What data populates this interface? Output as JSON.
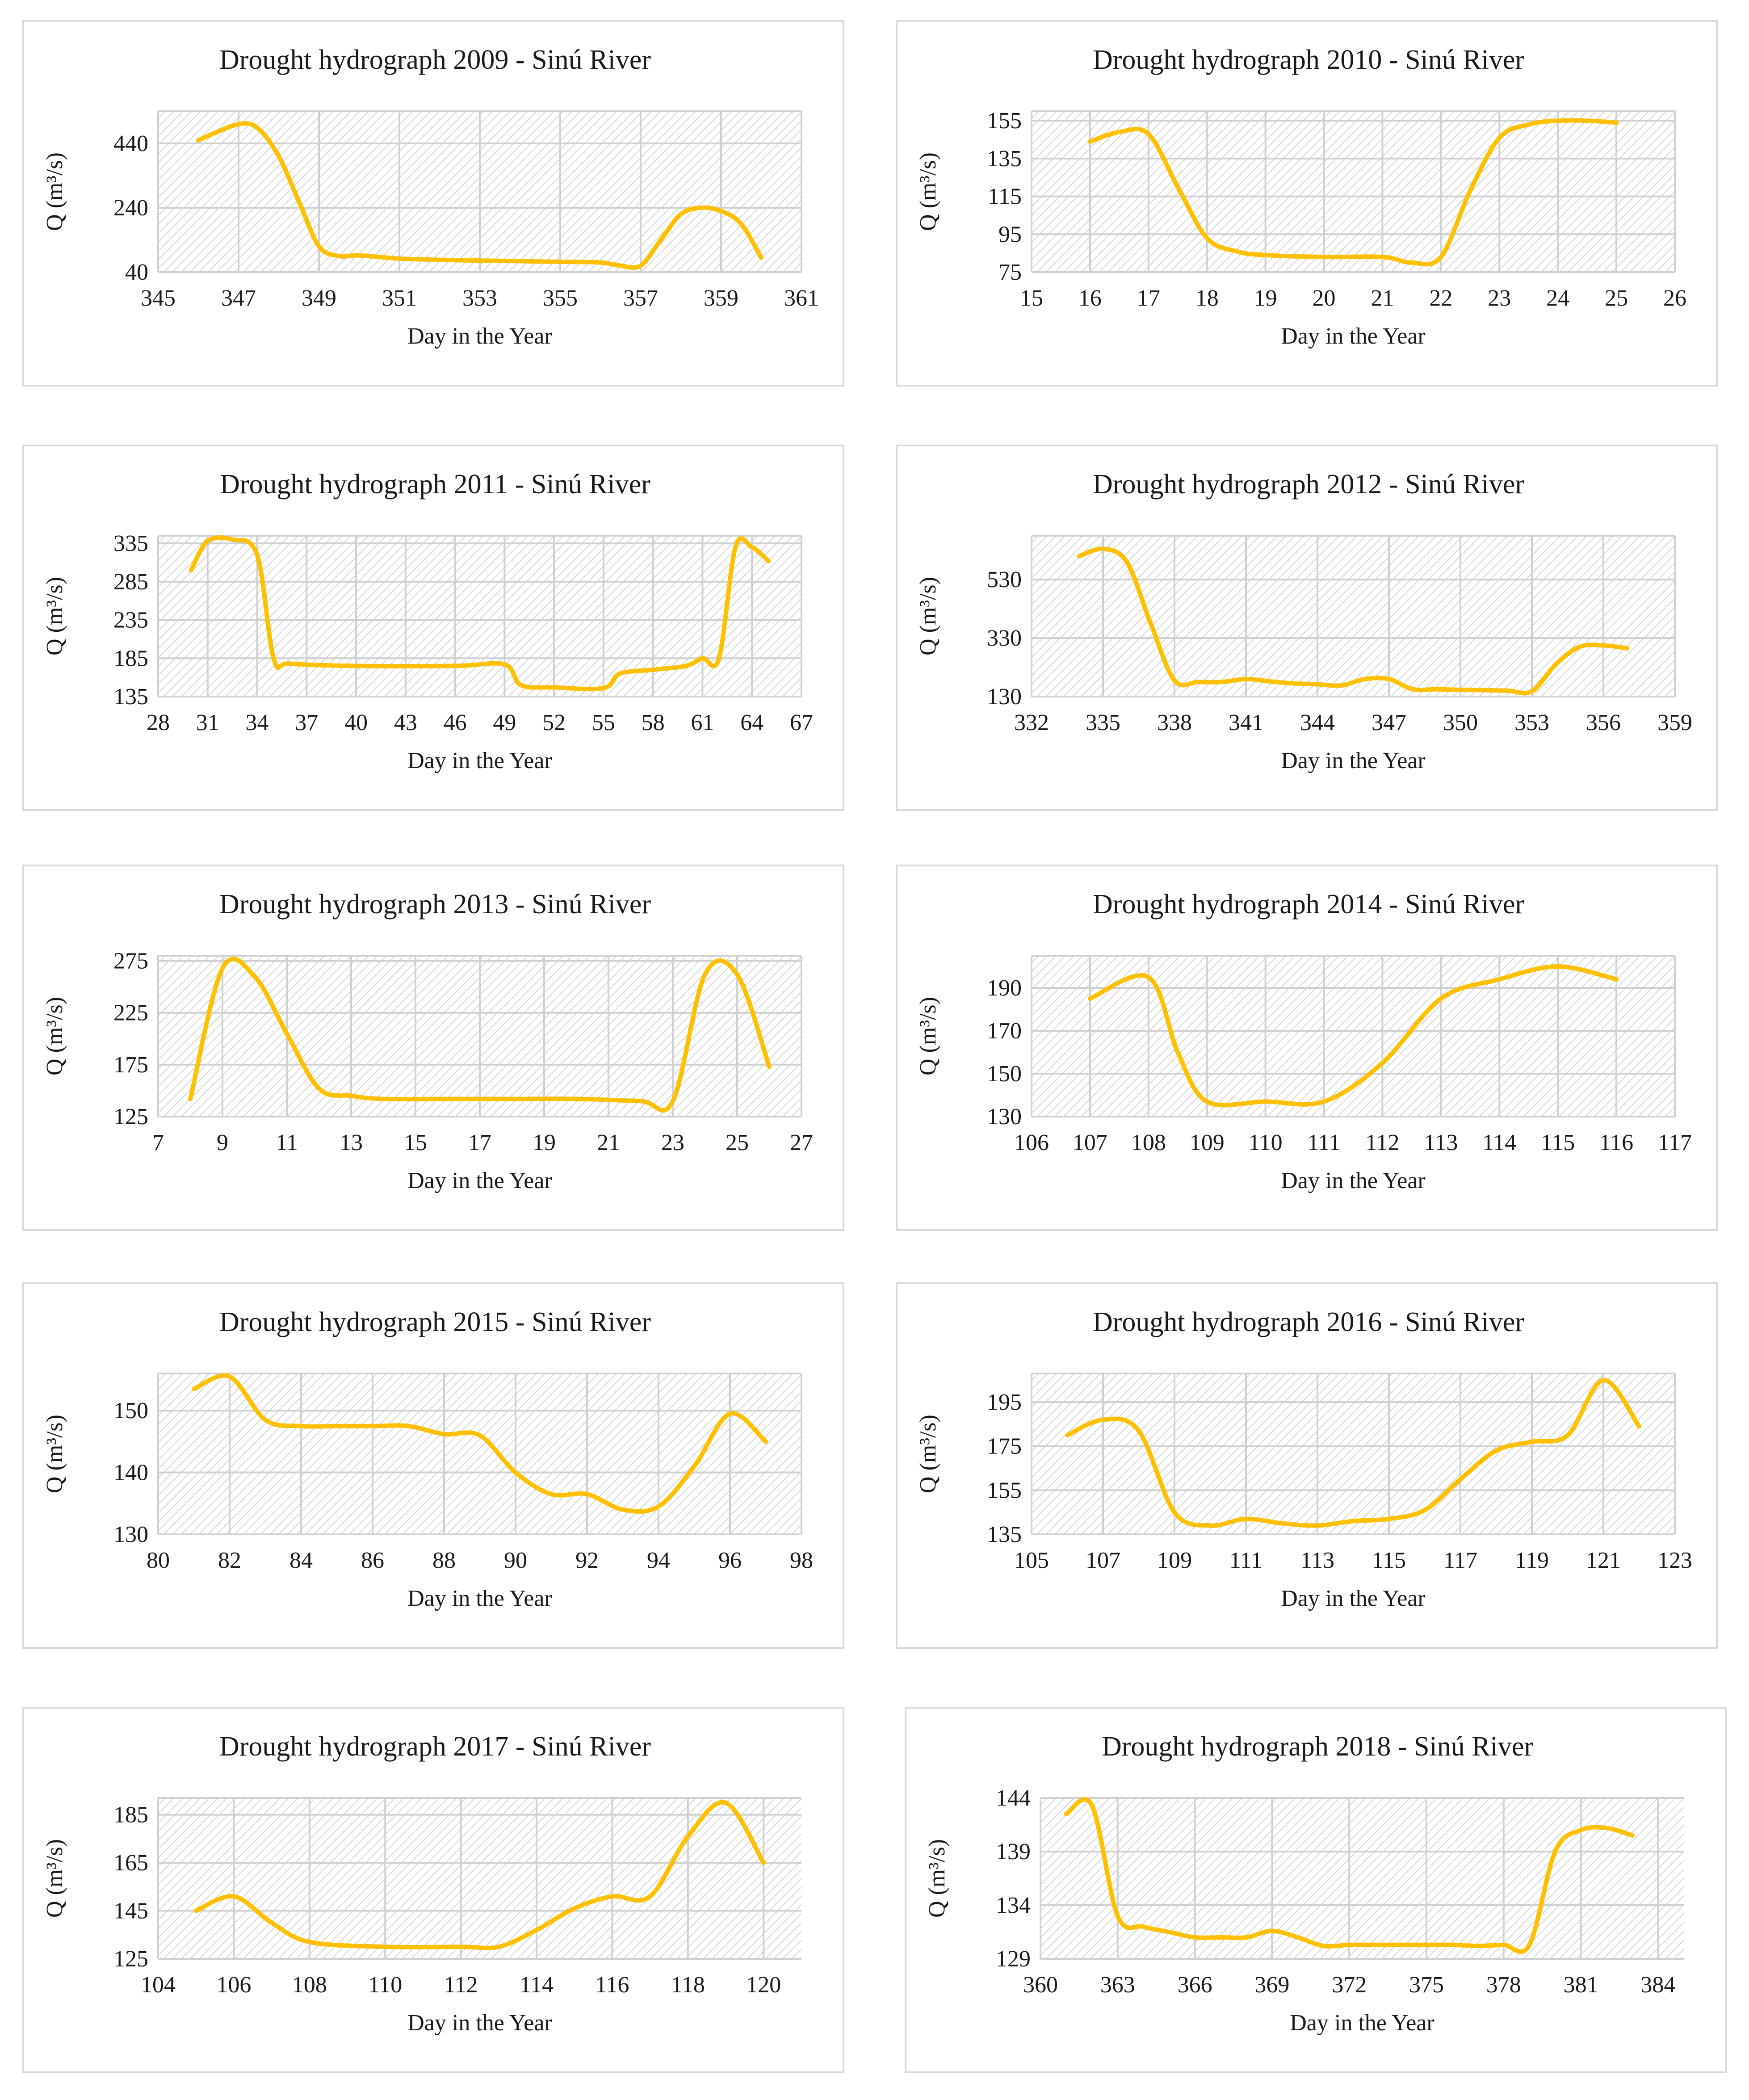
{
  "colors": {
    "series": "#FFC000",
    "grid": "#d0d0d0",
    "hatch": "#c8c8c8"
  },
  "chart_data": [
    {
      "type": "line",
      "title": "Drought hydrograph 2009 - Sinú River",
      "xlabel": "Day in the Year",
      "ylabel": "Q (m³/s)",
      "xlim": [
        345,
        361
      ],
      "ylim": [
        40,
        540
      ],
      "xticks": [
        345,
        347,
        349,
        351,
        353,
        355,
        357,
        359,
        361
      ],
      "yticks": [
        40,
        240,
        440
      ],
      "x": [
        346,
        347,
        347.5,
        348,
        348.5,
        349,
        349.5,
        350,
        351,
        352,
        353,
        354,
        355,
        356,
        356.5,
        357,
        357.5,
        358,
        358.5,
        359,
        359.5,
        360
      ],
      "values": [
        450,
        500,
        485,
        400,
        260,
        120,
        90,
        92,
        82,
        78,
        76,
        74,
        72,
        70,
        60,
        60,
        140,
        220,
        240,
        230,
        190,
        85
      ]
    },
    {
      "type": "line",
      "title": "Drought hydrograph 2010 - Sinú River",
      "xlabel": "Day in the Year",
      "ylabel": "Q (m³/s)",
      "xlim": [
        15,
        26
      ],
      "ylim": [
        75,
        160
      ],
      "xticks": [
        15,
        16,
        17,
        18,
        19,
        20,
        21,
        22,
        23,
        24,
        25,
        26
      ],
      "yticks": [
        75,
        95,
        115,
        135,
        155
      ],
      "x": [
        16,
        16.5,
        17,
        17.5,
        18,
        18.5,
        19,
        20,
        21,
        21.5,
        22,
        22.5,
        23,
        23.5,
        24,
        24.5,
        25
      ],
      "values": [
        144,
        149,
        148,
        120,
        93,
        86,
        84,
        83,
        83,
        80,
        83,
        118,
        146,
        153,
        155,
        155,
        154
      ]
    },
    {
      "type": "line",
      "title": "Drought hydrograph 2011 - Sinú River",
      "xlabel": "Day in the Year",
      "ylabel": "Q (m³/s)",
      "xlim": [
        28,
        67
      ],
      "ylim": [
        135,
        345
      ],
      "xticks": [
        28,
        31,
        34,
        37,
        40,
        43,
        46,
        49,
        52,
        55,
        58,
        61,
        64,
        67
      ],
      "yticks": [
        135,
        185,
        235,
        285,
        335
      ],
      "x": [
        30,
        31,
        32.5,
        34,
        35,
        36,
        40,
        46,
        49,
        50,
        52,
        55,
        56,
        58,
        60,
        61,
        62,
        63,
        64,
        65
      ],
      "values": [
        300,
        338,
        340,
        320,
        185,
        178,
        175,
        175,
        177,
        150,
        147,
        146,
        165,
        170,
        175,
        185,
        185,
        330,
        330,
        312
      ]
    },
    {
      "type": "line",
      "title": "Drought hydrograph 2012 - Sinú River",
      "xlabel": "Day in the Year",
      "ylabel": "Q (m³/s)",
      "xlim": [
        332,
        359
      ],
      "ylim": [
        130,
        680
      ],
      "xticks": [
        332,
        335,
        338,
        341,
        344,
        347,
        350,
        353,
        356,
        359
      ],
      "yticks": [
        130,
        330,
        530
      ],
      "x": [
        334,
        335,
        336,
        337,
        338,
        339,
        340,
        341,
        342,
        343,
        344,
        345,
        346,
        347,
        348,
        349,
        350,
        351,
        352,
        353,
        354,
        355,
        356,
        357
      ],
      "values": [
        610,
        635,
        590,
        380,
        185,
        180,
        180,
        190,
        182,
        175,
        172,
        168,
        190,
        190,
        155,
        155,
        153,
        152,
        150,
        148,
        240,
        300,
        305,
        295
      ]
    },
    {
      "type": "line",
      "title": "Drought hydrograph 2013 - Sinú River",
      "xlabel": "Day in the Year",
      "ylabel": "Q (m³/s)",
      "xlim": [
        7,
        27
      ],
      "ylim": [
        125,
        280
      ],
      "xticks": [
        7,
        9,
        11,
        13,
        15,
        17,
        19,
        21,
        23,
        25,
        27
      ],
      "yticks": [
        125,
        175,
        225,
        275
      ],
      "x": [
        8,
        9,
        10,
        11,
        12,
        13,
        14,
        16,
        18,
        20,
        22,
        23,
        24,
        25,
        26
      ],
      "values": [
        142,
        268,
        260,
        205,
        152,
        145,
        142,
        142,
        142,
        142,
        140,
        140,
        262,
        262,
        173
      ]
    },
    {
      "type": "line",
      "title": "Drought hydrograph 2014 - Sinú River",
      "xlabel": "Day in the Year",
      "ylabel": "Q (m³/s)",
      "xlim": [
        106,
        117
      ],
      "ylim": [
        130,
        205
      ],
      "xticks": [
        106,
        107,
        108,
        109,
        110,
        111,
        112,
        113,
        114,
        115,
        116,
        117
      ],
      "yticks": [
        130,
        150,
        170,
        190
      ],
      "x": [
        107,
        108,
        108.5,
        109,
        110,
        111,
        112,
        113,
        114,
        115,
        116
      ],
      "values": [
        185,
        195,
        160,
        137,
        137,
        137,
        155,
        185,
        194,
        200,
        194
      ]
    },
    {
      "type": "line",
      "title": "Drought hydrograph 2015 - Sinú River",
      "xlabel": "Day in the Year",
      "ylabel": "Q (m³/s)",
      "xlim": [
        80,
        98
      ],
      "ylim": [
        130,
        156
      ],
      "xticks": [
        80,
        82,
        84,
        86,
        88,
        90,
        92,
        94,
        96,
        98
      ],
      "yticks": [
        130,
        140,
        150
      ],
      "x": [
        81,
        82,
        83,
        84,
        85,
        86,
        87,
        88,
        89,
        90,
        91,
        92,
        93,
        94,
        95,
        96,
        97
      ],
      "values": [
        153.5,
        155.5,
        148.5,
        147.5,
        147.5,
        147.5,
        147.5,
        146.2,
        146,
        140,
        136.5,
        136.5,
        134,
        134.5,
        141,
        149.5,
        145
      ]
    },
    {
      "type": "line",
      "title": "Drought hydrograph 2016 - Sinú River",
      "xlabel": "Day in the Year",
      "ylabel": "Q (m³/s)",
      "xlim": [
        105,
        123
      ],
      "ylim": [
        135,
        208
      ],
      "xticks": [
        105,
        107,
        109,
        111,
        113,
        115,
        117,
        119,
        121,
        123
      ],
      "yticks": [
        135,
        155,
        175,
        195
      ],
      "x": [
        106,
        107,
        108,
        109,
        110,
        111,
        112,
        113,
        114,
        115,
        116,
        117,
        118,
        119,
        120,
        121,
        122
      ],
      "values": [
        180,
        187,
        182,
        145,
        139,
        142,
        140,
        139,
        141,
        142,
        146,
        160,
        173,
        177,
        180,
        205,
        184
      ]
    },
    {
      "type": "line",
      "title": "Drought hydrograph 2017 - Sinú River",
      "xlabel": "Day in the Year",
      "ylabel": "Q (m³/s)",
      "xlim": [
        104,
        121
      ],
      "ylim": [
        125,
        192
      ],
      "xticks": [
        104,
        106,
        108,
        110,
        112,
        114,
        116,
        118,
        120
      ],
      "yticks": [
        125,
        145,
        165,
        185
      ],
      "x": [
        105,
        106,
        107,
        108,
        110,
        112,
        113,
        114,
        115,
        116,
        117,
        118,
        119,
        120
      ],
      "values": [
        145,
        151,
        140,
        132,
        130,
        130,
        130,
        137,
        146,
        151,
        151,
        176,
        190,
        165
      ]
    },
    {
      "type": "line",
      "title": "Drought hydrograph 2018 - Sinú River",
      "xlabel": "Day in the Year",
      "ylabel": "Q (m³/s)",
      "xlim": [
        360,
        385
      ],
      "ylim": [
        129,
        144
      ],
      "xticks": [
        360,
        363,
        366,
        369,
        372,
        375,
        378,
        381,
        384
      ],
      "yticks": [
        129,
        134,
        139,
        144
      ],
      "x": [
        361,
        362,
        363,
        364,
        365,
        366,
        367,
        368,
        369,
        370,
        371,
        372,
        373,
        374,
        375,
        376,
        377,
        378,
        379,
        380,
        381,
        382,
        383
      ],
      "values": [
        142.5,
        143.3,
        133,
        132,
        131.5,
        131,
        131,
        131,
        131.6,
        131,
        130.2,
        130.3,
        130.3,
        130.3,
        130.3,
        130.3,
        130.2,
        130.3,
        130.3,
        139,
        141,
        141.2,
        140.5
      ]
    }
  ]
}
